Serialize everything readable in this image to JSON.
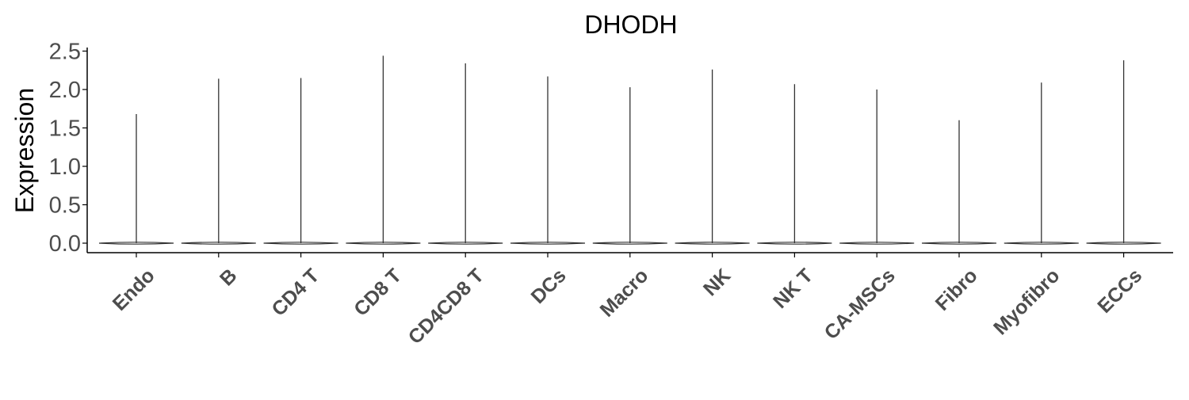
{
  "chart_data": {
    "type": "violin",
    "title": "DHODH",
    "xlabel": "",
    "ylabel": "Expression",
    "ylim": [
      -0.12,
      2.55
    ],
    "yticks": [
      "0.0",
      "0.5",
      "1.0",
      "1.5",
      "2.0",
      "2.5"
    ],
    "grid": false,
    "legend": "none",
    "categories": [
      "Endo",
      "B",
      "CD4 T",
      "CD8 T",
      "CD4CD8 T",
      "DCs",
      "Macro",
      "NK",
      "NK T",
      "CA-MSCs",
      "Fibro",
      "Myofibro",
      "ECCs"
    ],
    "max_values": [
      1.68,
      2.14,
      2.15,
      2.44,
      2.34,
      2.17,
      2.03,
      2.26,
      2.07,
      2.0,
      1.6,
      2.09,
      2.38
    ],
    "median_values": [
      0,
      0,
      0,
      0,
      0,
      0,
      0,
      0,
      0,
      0,
      0,
      0,
      0
    ],
    "colors": {
      "violin_stroke": "#333333",
      "axis": "#000000",
      "tick_label": "#4d4d4d"
    }
  }
}
